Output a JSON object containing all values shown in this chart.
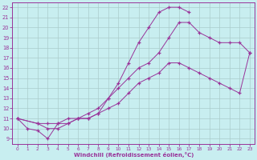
{
  "xlabel": "Windchill (Refroidissement éolien,°C)",
  "xlim": [
    -0.5,
    23.5
  ],
  "ylim": [
    8.5,
    22.5
  ],
  "yticks": [
    9,
    10,
    11,
    12,
    13,
    14,
    15,
    16,
    17,
    18,
    19,
    20,
    21,
    22
  ],
  "xticks": [
    0,
    1,
    2,
    3,
    4,
    5,
    6,
    7,
    8,
    9,
    10,
    11,
    12,
    13,
    14,
    15,
    16,
    17,
    18,
    19,
    20,
    21,
    22,
    23
  ],
  "bg_color": "#c8eef0",
  "grid_color": "#aacccc",
  "line_color": "#993399",
  "curve1_x": [
    0,
    1,
    2,
    3,
    4,
    5,
    6,
    7,
    8,
    9,
    10,
    11,
    12,
    13,
    14,
    15,
    16,
    17
  ],
  "curve1_y": [
    11.0,
    10.0,
    9.8,
    9.0,
    10.5,
    10.5,
    11.0,
    11.0,
    11.5,
    13.0,
    14.5,
    16.5,
    18.5,
    20.0,
    21.5,
    22.0,
    22.0,
    21.5
  ],
  "curve2_x": [
    0,
    2,
    3,
    4,
    5,
    6,
    7,
    8,
    9,
    10,
    11,
    12,
    13,
    14,
    15,
    16,
    17,
    18,
    19,
    20,
    21,
    22,
    23
  ],
  "curve2_y": [
    11.0,
    10.5,
    10.5,
    10.5,
    11.0,
    11.0,
    11.5,
    12.0,
    13.0,
    14.0,
    15.0,
    16.0,
    16.5,
    17.5,
    19.0,
    20.5,
    20.5,
    19.5,
    19.0,
    18.5,
    18.5,
    18.5,
    17.5
  ],
  "curve3_x": [
    0,
    2,
    3,
    4,
    5,
    6,
    7,
    8,
    9,
    10,
    11,
    12,
    13,
    14,
    15,
    16,
    17,
    18,
    19,
    20,
    21,
    22,
    23
  ],
  "curve3_y": [
    11.0,
    10.5,
    10.0,
    10.0,
    10.5,
    11.0,
    11.0,
    11.5,
    12.0,
    12.5,
    13.5,
    14.5,
    15.0,
    15.5,
    16.5,
    16.5,
    16.0,
    15.5,
    15.0,
    14.5,
    14.0,
    13.5,
    17.5
  ]
}
